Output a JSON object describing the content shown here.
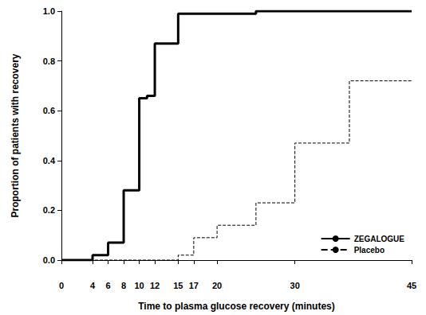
{
  "chart_data": {
    "type": "step",
    "x_label": "Time to plasma glucose recovery (minutes)",
    "y_label": "Proportion of patients with recovery",
    "xlim": [
      0,
      45
    ],
    "xticks": [
      0,
      4,
      6,
      8,
      10,
      12,
      15,
      17,
      20,
      30,
      45
    ],
    "ylim": [
      0,
      1
    ],
    "yticks": [
      {
        "value": 0,
        "label": "0.0"
      },
      {
        "value": 0.2,
        "label": "0.2"
      },
      {
        "value": 0.4,
        "label": "0.4"
      },
      {
        "value": 0.6,
        "label": "0.6"
      },
      {
        "value": 0.8,
        "label": "0.8"
      },
      {
        "value": 1,
        "label": "1.0"
      }
    ],
    "grid": false,
    "legend": "lower right",
    "marker": "none",
    "series": [
      {
        "name": "ZEGALOGUE",
        "color": "#000000",
        "line_style": "solid",
        "x": [
          0,
          4,
          6,
          8,
          10,
          11,
          12,
          15,
          25,
          45
        ],
        "values": [
          0,
          0.02,
          0.07,
          0.28,
          0.65,
          0.66,
          0.87,
          0.99,
          1.0,
          1.0
        ]
      },
      {
        "name": "Placebo",
        "color": "#000000",
        "line_style": "dashed",
        "x": [
          0,
          15,
          17,
          20,
          25,
          30,
          37,
          45
        ],
        "values": [
          0,
          0.02,
          0.09,
          0.14,
          0.23,
          0.47,
          0.72,
          0.72
        ]
      }
    ]
  }
}
